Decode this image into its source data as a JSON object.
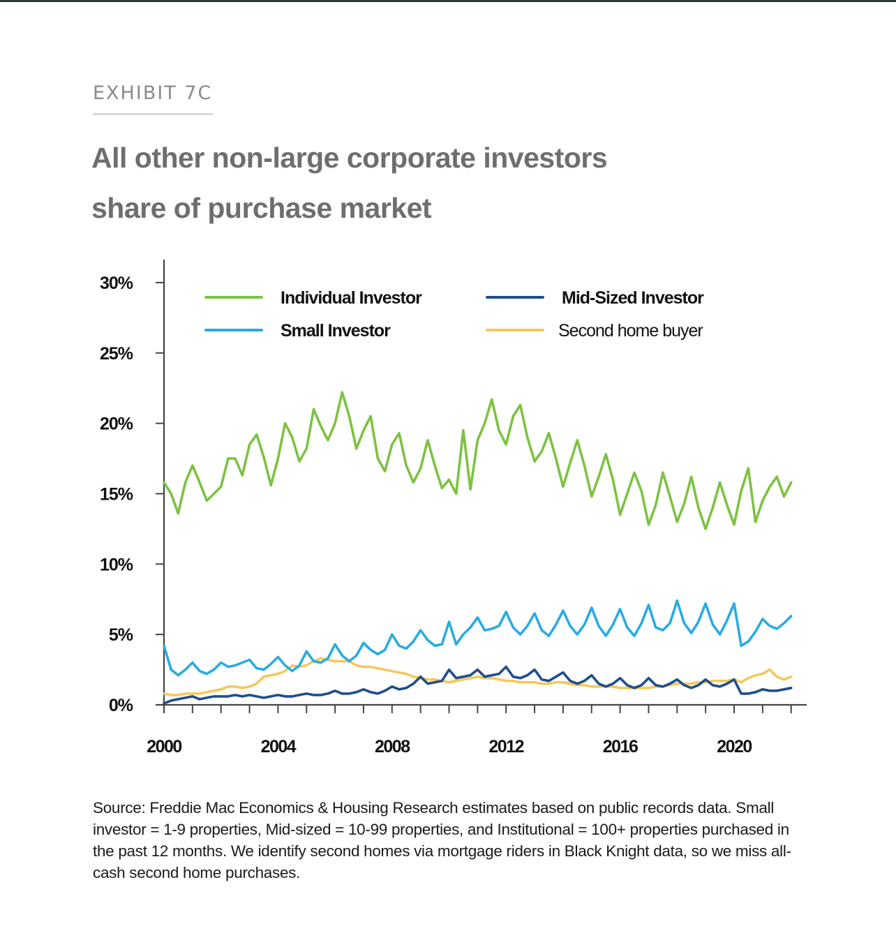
{
  "exhibit_label": "EXHIBIT 7C",
  "title_line1": "All other non-large corporate investors",
  "title_line2": "share of purchase market",
  "source_note": "Source: Freddie Mac Economics & Housing Research estimates based on public records data. Small investor = 1-9 properties, Mid-sized = 10-99 properties, and Institutional = 100+ properties purchased in the past 12 months. We identify second homes via mortgage riders in Black Knight data, so we miss all-cash second home purchases.",
  "chart_data": {
    "type": "line",
    "title": "All other non-large corporate investors share of purchase market",
    "xlabel": "",
    "ylabel": "",
    "x_start": 2000,
    "x_step": 0.25,
    "xlim": [
      2000,
      2022.5
    ],
    "ylim": [
      0,
      30
    ],
    "x_tick_labels": [
      "2000",
      "2004",
      "2008",
      "2012",
      "2016",
      "2020"
    ],
    "x_tick_values": [
      2000,
      2004,
      2008,
      2012,
      2016,
      2020
    ],
    "x_minor_tick_step": 1,
    "y_tick_labels": [
      "0%",
      "5%",
      "10%",
      "15%",
      "20%",
      "25%",
      "30%"
    ],
    "y_tick_values": [
      0,
      5,
      10,
      15,
      20,
      25,
      30
    ],
    "grid": false,
    "legend_position": "top",
    "series": [
      {
        "name": "Individual Investor",
        "color": "#7dc242",
        "values": [
          15.8,
          15.0,
          13.6,
          15.8,
          17.0,
          15.8,
          14.5,
          15.0,
          15.5,
          17.5,
          17.5,
          16.3,
          18.5,
          19.2,
          17.6,
          15.6,
          17.5,
          20.0,
          19.0,
          17.3,
          18.2,
          21.0,
          19.8,
          18.8,
          20.0,
          22.2,
          20.5,
          18.2,
          19.5,
          20.5,
          17.5,
          16.6,
          18.5,
          19.3,
          17.0,
          15.8,
          16.8,
          18.8,
          17.0,
          15.4,
          16.0,
          15.0,
          19.5,
          15.3,
          18.8,
          20.0,
          21.7,
          19.5,
          18.5,
          20.5,
          21.3,
          19.0,
          17.3,
          18.0,
          19.3,
          17.5,
          15.5,
          17.2,
          18.8,
          17.0,
          14.8,
          16.2,
          17.8,
          16.0,
          13.5,
          15.0,
          16.5,
          15.2,
          12.8,
          14.2,
          16.5,
          14.8,
          13.0,
          14.3,
          16.2,
          14.0,
          12.5,
          14.0,
          15.8,
          14.2,
          12.8,
          15.2,
          16.8,
          13.0,
          14.5,
          15.5,
          16.2,
          14.8,
          15.8
        ]
      },
      {
        "name": "Small Investor",
        "color": "#29abe2",
        "values": [
          4.2,
          2.5,
          2.1,
          2.5,
          3.0,
          2.4,
          2.2,
          2.5,
          3.0,
          2.7,
          2.8,
          3.0,
          3.2,
          2.6,
          2.5,
          2.9,
          3.4,
          2.8,
          2.4,
          2.8,
          3.8,
          3.1,
          3.0,
          3.3,
          4.3,
          3.5,
          3.1,
          3.5,
          4.4,
          3.9,
          3.6,
          3.9,
          5.0,
          4.2,
          4.0,
          4.5,
          5.3,
          4.6,
          4.2,
          4.3,
          5.9,
          4.3,
          5.0,
          5.5,
          6.2,
          5.3,
          5.4,
          5.6,
          6.6,
          5.5,
          5.0,
          5.6,
          6.5,
          5.3,
          4.9,
          5.7,
          6.7,
          5.6,
          5.0,
          5.7,
          6.9,
          5.6,
          4.9,
          5.7,
          6.8,
          5.5,
          4.9,
          5.8,
          7.1,
          5.5,
          5.3,
          5.8,
          7.4,
          5.8,
          5.1,
          5.9,
          7.2,
          5.7,
          5.0,
          6.0,
          7.2,
          4.2,
          4.5,
          5.2,
          6.1,
          5.6,
          5.4,
          5.8,
          6.3
        ]
      },
      {
        "name": "Mid-Sized Investor",
        "color": "#1f4e8c",
        "values": [
          0.1,
          0.3,
          0.4,
          0.5,
          0.6,
          0.4,
          0.5,
          0.6,
          0.6,
          0.6,
          0.7,
          0.6,
          0.7,
          0.6,
          0.5,
          0.6,
          0.7,
          0.6,
          0.6,
          0.7,
          0.8,
          0.7,
          0.7,
          0.8,
          1.0,
          0.8,
          0.8,
          0.9,
          1.1,
          0.9,
          0.8,
          1.0,
          1.3,
          1.1,
          1.2,
          1.5,
          2.0,
          1.5,
          1.6,
          1.7,
          2.5,
          1.9,
          2.0,
          2.1,
          2.5,
          2.0,
          2.1,
          2.2,
          2.7,
          2.0,
          1.9,
          2.1,
          2.5,
          1.8,
          1.7,
          2.0,
          2.3,
          1.7,
          1.5,
          1.7,
          2.1,
          1.5,
          1.3,
          1.5,
          1.9,
          1.4,
          1.2,
          1.4,
          1.9,
          1.4,
          1.3,
          1.5,
          1.8,
          1.4,
          1.2,
          1.4,
          1.8,
          1.4,
          1.3,
          1.5,
          1.8,
          0.8,
          0.8,
          0.9,
          1.1,
          1.0,
          1.0,
          1.1,
          1.2
        ]
      },
      {
        "name": "Second home buyer",
        "color": "#f5c85a",
        "values": [
          0.8,
          0.7,
          0.7,
          0.8,
          0.8,
          0.8,
          0.9,
          1.0,
          1.1,
          1.3,
          1.3,
          1.2,
          1.3,
          1.5,
          2.0,
          2.1,
          2.2,
          2.4,
          2.8,
          2.7,
          2.8,
          3.1,
          3.3,
          3.2,
          3.1,
          3.1,
          3.1,
          2.8,
          2.7,
          2.7,
          2.6,
          2.5,
          2.4,
          2.3,
          2.2,
          2.0,
          1.9,
          1.8,
          1.8,
          1.7,
          1.6,
          1.7,
          1.8,
          1.9,
          2.0,
          1.9,
          1.9,
          1.8,
          1.7,
          1.7,
          1.6,
          1.6,
          1.6,
          1.5,
          1.5,
          1.6,
          1.6,
          1.5,
          1.4,
          1.4,
          1.3,
          1.3,
          1.3,
          1.3,
          1.2,
          1.2,
          1.2,
          1.2,
          1.2,
          1.3,
          1.3,
          1.4,
          1.5,
          1.5,
          1.5,
          1.6,
          1.6,
          1.7,
          1.7,
          1.7,
          1.8,
          1.6,
          1.9,
          2.1,
          2.2,
          2.5,
          2.0,
          1.8,
          2.0
        ]
      }
    ]
  }
}
